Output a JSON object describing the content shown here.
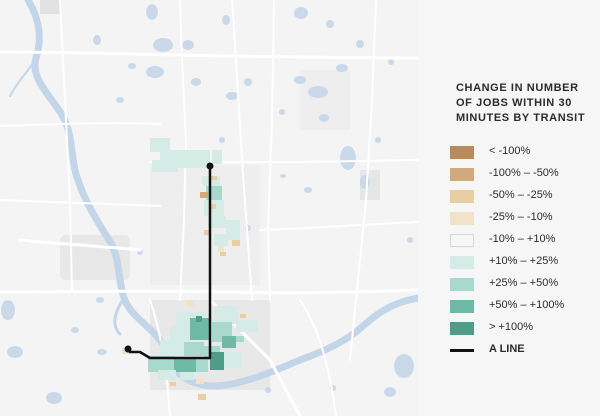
{
  "legend": {
    "title": "CHANGE IN NUMBER OF JOBS WITHIN 30 MINUTES BY TRANSIT",
    "items": [
      {
        "label": "< -100%",
        "color": "#b98a5c"
      },
      {
        "label": "-100% – -50%",
        "color": "#d0aa7d"
      },
      {
        "label": "-50% – -25%",
        "color": "#e7cfa2"
      },
      {
        "label": "-25% – -10%",
        "color": "#f1e3ca"
      },
      {
        "label": "-10% – +10%",
        "color": "#f7f7f7"
      },
      {
        "label": "+10% – +25%",
        "color": "#d4ebe6"
      },
      {
        "label": "+25% – +50%",
        "color": "#a9d8cd"
      },
      {
        "label": "+50% – +100%",
        "color": "#6fbaa7"
      },
      {
        "label": "> +100%",
        "color": "#4f9c89"
      }
    ],
    "line_item": {
      "label": "A LINE",
      "color": "#111111"
    }
  },
  "colors": {
    "background": "#f4f4f4",
    "water": "#c9d9ea",
    "river": "#c3d5e8",
    "road": "#ffffff",
    "urban": "#e6e6e6",
    "transit_line": "#111111"
  }
}
